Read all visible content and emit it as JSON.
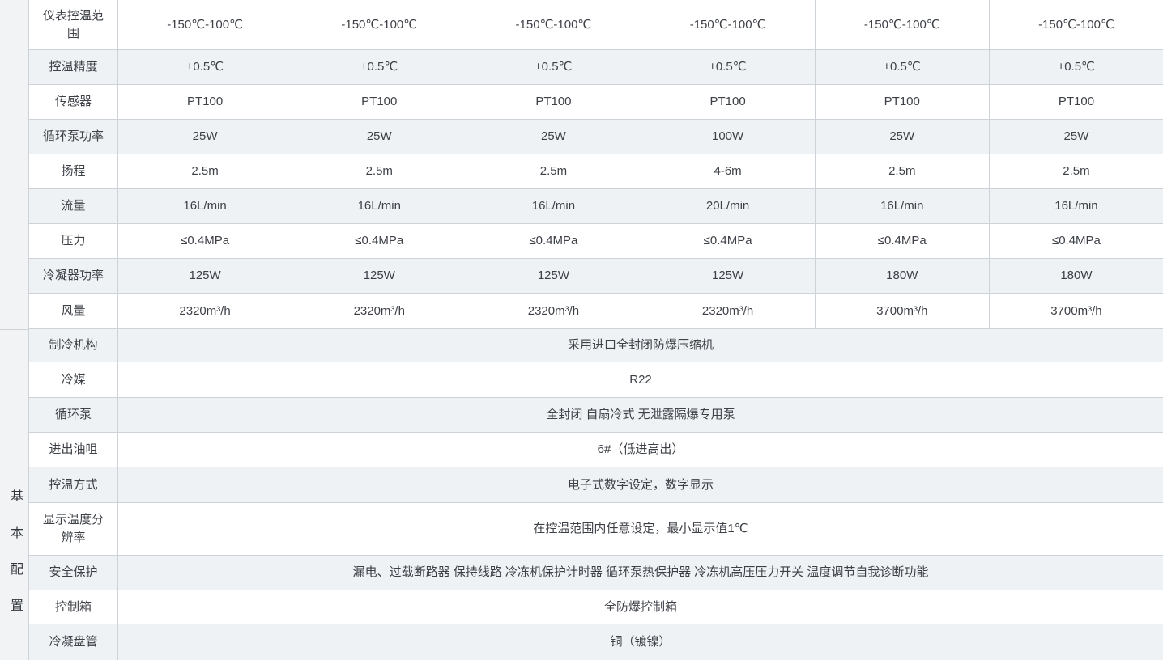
{
  "section_label": "基本配置",
  "spec_section": {
    "rows": [
      {
        "label": "仪表控温范围",
        "values": [
          "-150℃-100℃",
          "-150℃-100℃",
          "-150℃-100℃",
          "-150℃-100℃",
          "-150℃-100℃",
          "-150℃-100℃"
        ]
      },
      {
        "label": "控温精度",
        "values": [
          "±0.5℃",
          "±0.5℃",
          "±0.5℃",
          "±0.5℃",
          "±0.5℃",
          "±0.5℃"
        ]
      },
      {
        "label": "传感器",
        "values": [
          "PT100",
          "PT100",
          "PT100",
          "PT100",
          "PT100",
          "PT100"
        ]
      },
      {
        "label": "循环泵功率",
        "values": [
          "25W",
          "25W",
          "25W",
          "100W",
          "25W",
          "25W"
        ]
      },
      {
        "label": "扬程",
        "values": [
          "2.5m",
          "2.5m",
          "2.5m",
          "4-6m",
          "2.5m",
          "2.5m"
        ]
      },
      {
        "label": "流量",
        "values": [
          "16L/min",
          "16L/min",
          "16L/min",
          "20L/min",
          "16L/min",
          "16L/min"
        ]
      },
      {
        "label": "压力",
        "values": [
          "≤0.4MPa",
          "≤0.4MPa",
          "≤0.4MPa",
          "≤0.4MPa",
          "≤0.4MPa",
          "≤0.4MPa"
        ]
      },
      {
        "label": "冷凝器功率",
        "values": [
          "125W",
          "125W",
          "125W",
          "125W",
          "180W",
          "180W"
        ]
      },
      {
        "label": "风量",
        "values": [
          "2320m³/h",
          "2320m³/h",
          "2320m³/h",
          "2320m³/h",
          "3700m³/h",
          "3700m³/h"
        ]
      }
    ]
  },
  "config_section": {
    "rows": [
      {
        "label": "制冷机构",
        "value": "采用进口全封闭防爆压缩机"
      },
      {
        "label": "冷媒",
        "value": "R22"
      },
      {
        "label": "循环泵",
        "value": "全封闭 自扇冷式 无泄露隔爆专用泵"
      },
      {
        "label": "进出油咀",
        "value": "6#（低进高出）"
      },
      {
        "label": "控温方式",
        "value": "电子式数字设定，数字显示"
      },
      {
        "label": "显示温度分辨率",
        "value": "在控温范围内任意设定，最小显示值1℃"
      },
      {
        "label": "安全保护",
        "value": "漏电、过载断路器 保持线路 冷冻机保护计时器 循环泵热保护器 冷冻机高压压力开关 温度调节自我诊断功能"
      },
      {
        "label": "控制箱",
        "value": "全防爆控制箱"
      },
      {
        "label": "冷凝盘管",
        "value": "铜（镀镍）"
      }
    ]
  },
  "colors": {
    "row_bg": "#ffffff",
    "row_alt_bg": "#eff2f5",
    "strip_bg": "#f1f3f5",
    "border": "#ccd2d7",
    "text": "#3d4147"
  }
}
